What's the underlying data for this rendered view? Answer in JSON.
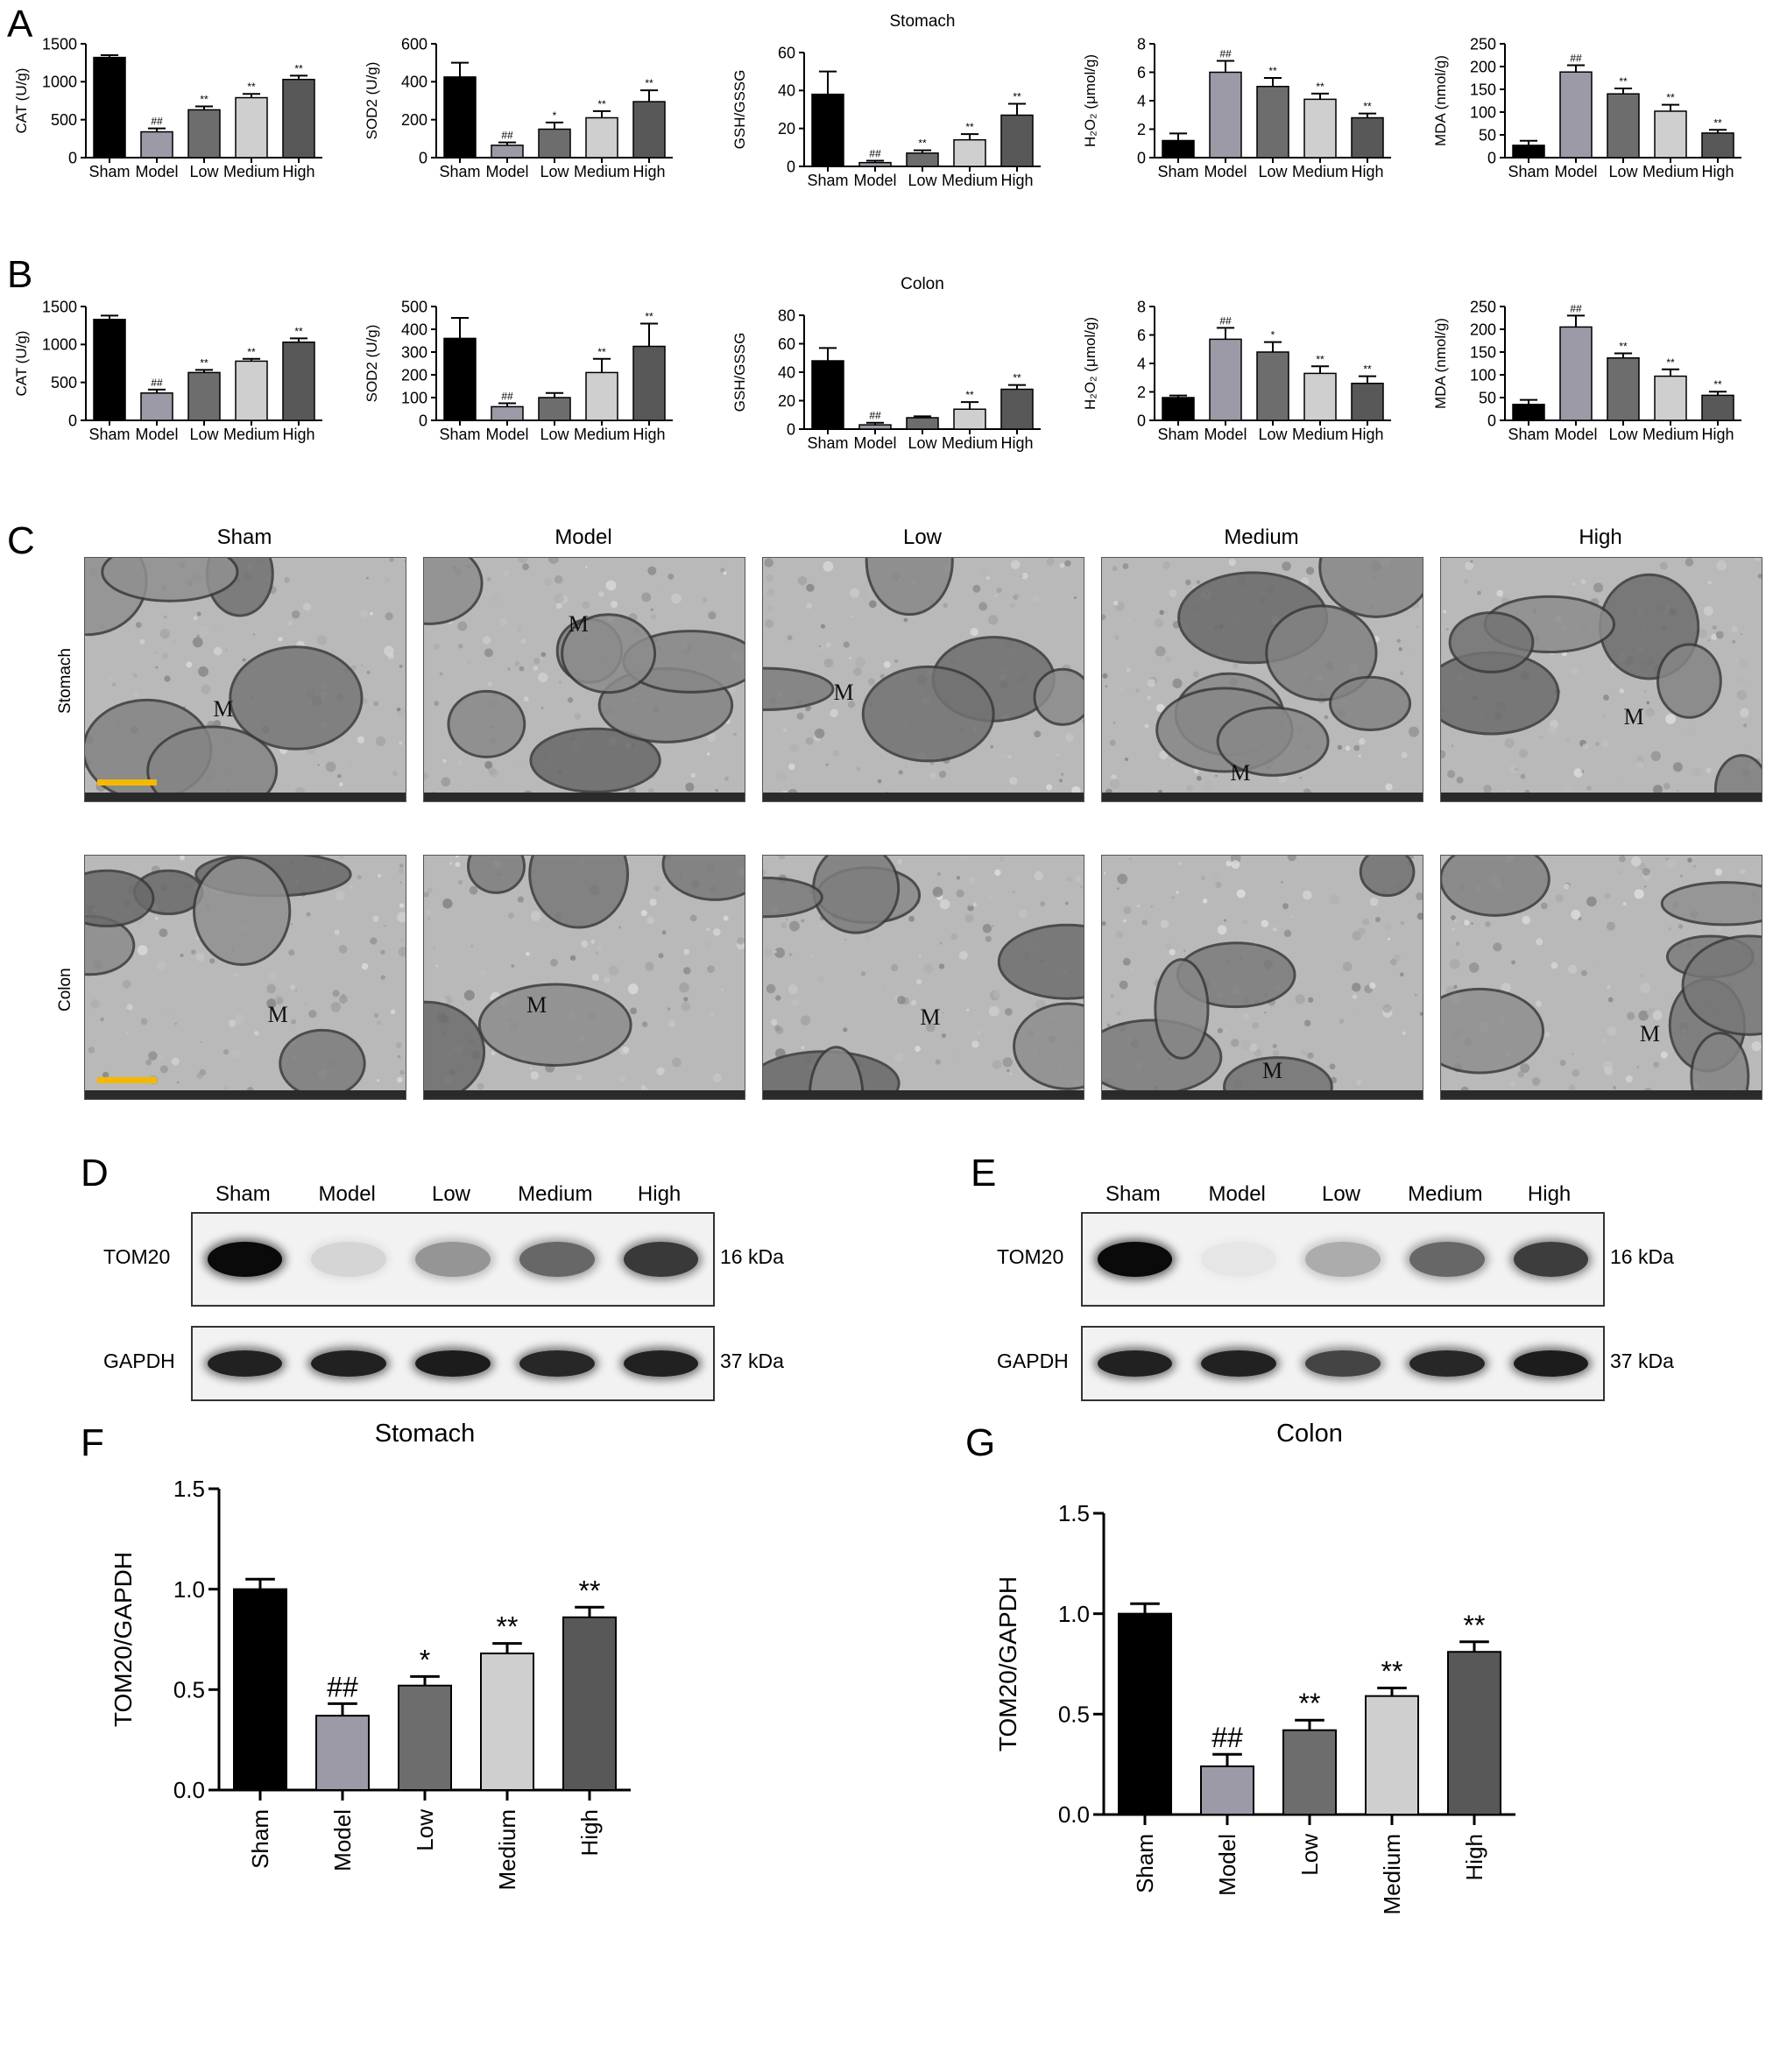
{
  "panels": {
    "A": "A",
    "B": "B",
    "C": "C",
    "D": "D",
    "E": "E",
    "F": "F",
    "G": "G"
  },
  "groups": [
    "Sham",
    "Model",
    "Low",
    "Medium",
    "High"
  ],
  "bar_colors": [
    "#000000",
    "#9b9aa6",
    "#6d6d6d",
    "#cfcfcf",
    "#585858"
  ],
  "chart_data": [
    {
      "id": "A1",
      "type": "bar",
      "panel": "A",
      "categories": [
        "Sham",
        "Model",
        "Low",
        "Medium",
        "High"
      ],
      "values": [
        1320,
        340,
        630,
        790,
        1030
      ],
      "errors": [
        30,
        45,
        45,
        50,
        50
      ],
      "sig": [
        "",
        "##",
        "**",
        "**",
        "**"
      ],
      "title": "",
      "ylabel": "CAT (U/g)",
      "ylim": [
        0,
        1500
      ],
      "yticks": [
        0,
        500,
        1000,
        1500
      ]
    },
    {
      "id": "A2",
      "type": "bar",
      "panel": "A",
      "categories": [
        "Sham",
        "Model",
        "Low",
        "Medium",
        "High"
      ],
      "values": [
        425,
        65,
        150,
        210,
        295
      ],
      "errors": [
        75,
        15,
        35,
        35,
        60
      ],
      "sig": [
        "",
        "##",
        "*",
        "**",
        "**"
      ],
      "title": "",
      "ylabel": "SOD2 (U/g)",
      "ylim": [
        0,
        600
      ],
      "yticks": [
        0,
        200,
        400,
        600
      ]
    },
    {
      "id": "A3",
      "type": "bar",
      "panel": "A",
      "categories": [
        "Sham",
        "Model",
        "Low",
        "Medium",
        "High"
      ],
      "values": [
        38,
        2,
        7,
        14,
        27
      ],
      "errors": [
        12,
        1,
        1.5,
        3,
        6
      ],
      "sig": [
        "",
        "##",
        "**",
        "**",
        "**"
      ],
      "title": "Stomach",
      "ylabel": "GSH/GSSG",
      "ylim": [
        0,
        60
      ],
      "yticks": [
        0,
        20,
        40,
        60
      ]
    },
    {
      "id": "A4",
      "type": "bar",
      "panel": "A",
      "categories": [
        "Sham",
        "Model",
        "Low",
        "Medium",
        "High"
      ],
      "values": [
        1.2,
        6.0,
        5.0,
        4.1,
        2.8
      ],
      "errors": [
        0.5,
        0.8,
        0.6,
        0.4,
        0.3
      ],
      "sig": [
        "",
        "##",
        "**",
        "**",
        "**"
      ],
      "title": "",
      "ylabel": "H₂O₂ (μmol/g)",
      "ylim": [
        0,
        8
      ],
      "yticks": [
        0,
        2,
        4,
        6,
        8
      ]
    },
    {
      "id": "A5",
      "type": "bar",
      "panel": "A",
      "categories": [
        "Sham",
        "Model",
        "Low",
        "Medium",
        "High"
      ],
      "values": [
        27,
        188,
        140,
        102,
        54
      ],
      "errors": [
        10,
        15,
        12,
        14,
        7
      ],
      "sig": [
        "",
        "##",
        "**",
        "**",
        "**"
      ],
      "title": "",
      "ylabel": "MDA (nmol/g)",
      "ylim": [
        0,
        250
      ],
      "yticks": [
        0,
        50,
        100,
        150,
        200,
        250
      ]
    },
    {
      "id": "B1",
      "type": "bar",
      "panel": "B",
      "categories": [
        "Sham",
        "Model",
        "Low",
        "Medium",
        "High"
      ],
      "values": [
        1330,
        360,
        630,
        780,
        1030
      ],
      "errors": [
        50,
        45,
        35,
        30,
        50
      ],
      "sig": [
        "",
        "##",
        "**",
        "**",
        "**"
      ],
      "title": "",
      "ylabel": "CAT (U/g)",
      "ylim": [
        0,
        1500
      ],
      "yticks": [
        0,
        500,
        1000,
        1500
      ]
    },
    {
      "id": "B2",
      "type": "bar",
      "panel": "B",
      "categories": [
        "Sham",
        "Model",
        "Low",
        "Medium",
        "High"
      ],
      "values": [
        360,
        60,
        100,
        210,
        325
      ],
      "errors": [
        90,
        15,
        20,
        60,
        100
      ],
      "sig": [
        "",
        "##",
        "",
        "**",
        "**"
      ],
      "title": "",
      "ylabel": "SOD2 (U/g)",
      "ylim": [
        0,
        500
      ],
      "yticks": [
        0,
        100,
        200,
        300,
        400,
        500
      ]
    },
    {
      "id": "B3",
      "type": "bar",
      "panel": "B",
      "categories": [
        "Sham",
        "Model",
        "Low",
        "Medium",
        "High"
      ],
      "values": [
        48,
        3,
        8,
        14,
        28
      ],
      "errors": [
        9,
        1.5,
        1,
        5,
        3
      ],
      "sig": [
        "",
        "##",
        "",
        "**",
        "**"
      ],
      "title": "Colon",
      "ylabel": "GSH/GSSG",
      "ylim": [
        0,
        80
      ],
      "yticks": [
        0,
        20,
        40,
        60,
        80
      ]
    },
    {
      "id": "B4",
      "type": "bar",
      "panel": "B",
      "categories": [
        "Sham",
        "Model",
        "Low",
        "Medium",
        "High"
      ],
      "values": [
        1.6,
        5.7,
        4.8,
        3.3,
        2.6
      ],
      "errors": [
        0.15,
        0.8,
        0.7,
        0.5,
        0.5
      ],
      "sig": [
        "",
        "##",
        "*",
        "**",
        "**"
      ],
      "title": "",
      "ylabel": "H₂O₂ (μmol/g)",
      "ylim": [
        0,
        8
      ],
      "yticks": [
        0,
        2,
        4,
        6,
        8
      ]
    },
    {
      "id": "B5",
      "type": "bar",
      "panel": "B",
      "categories": [
        "Sham",
        "Model",
        "Low",
        "Medium",
        "High"
      ],
      "values": [
        35,
        205,
        137,
        97,
        55
      ],
      "errors": [
        10,
        25,
        10,
        15,
        8
      ],
      "sig": [
        "",
        "##",
        "**",
        "**",
        "**"
      ],
      "title": "",
      "ylabel": "MDA (nmol/g)",
      "ylim": [
        0,
        250
      ],
      "yticks": [
        0,
        50,
        100,
        150,
        200,
        250
      ]
    },
    {
      "id": "F",
      "type": "bar",
      "panel": "F",
      "categories": [
        "Sham",
        "Model",
        "Low",
        "Medium",
        "High"
      ],
      "values": [
        1.0,
        0.37,
        0.52,
        0.68,
        0.86
      ],
      "errors": [
        0.05,
        0.06,
        0.045,
        0.05,
        0.05
      ],
      "sig": [
        "",
        "##",
        "*",
        "**",
        "**"
      ],
      "title": "Stomach",
      "ylabel": "TOM20/GAPDH",
      "ylim": [
        0,
        1.5
      ],
      "yticks": [
        0.0,
        0.5,
        1.0,
        1.5
      ]
    },
    {
      "id": "G",
      "type": "bar",
      "panel": "G",
      "categories": [
        "Sham",
        "Model",
        "Low",
        "Medium",
        "High"
      ],
      "values": [
        1.0,
        0.24,
        0.42,
        0.59,
        0.81
      ],
      "errors": [
        0.05,
        0.06,
        0.05,
        0.04,
        0.05
      ],
      "sig": [
        "",
        "##",
        "**",
        "**",
        "**"
      ],
      "title": "Colon",
      "ylabel": "TOM20/GAPDH",
      "ylim": [
        0,
        1.5
      ],
      "yticks": [
        0.0,
        0.5,
        1.0,
        1.5
      ]
    }
  ],
  "em": {
    "columns": [
      "Sham",
      "Model",
      "Low",
      "Medium",
      "High"
    ],
    "rows": [
      "Stomach",
      "Colon"
    ],
    "mito_label": "M"
  },
  "western": {
    "D": {
      "lanes": [
        "Sham",
        "Model",
        "Low",
        "Medium",
        "High"
      ],
      "proteins": [
        {
          "name": "TOM20",
          "kda": "16 kDa",
          "intensity": [
            1.0,
            0.12,
            0.4,
            0.6,
            0.8
          ]
        },
        {
          "name": "GAPDH",
          "kda": "37 kDa",
          "intensity": [
            0.9,
            0.9,
            0.92,
            0.88,
            0.9
          ]
        }
      ]
    },
    "E": {
      "lanes": [
        "Sham",
        "Model",
        "Low",
        "Medium",
        "High"
      ],
      "proteins": [
        {
          "name": "TOM20",
          "kda": "16 kDa",
          "intensity": [
            1.0,
            0.05,
            0.3,
            0.6,
            0.78
          ]
        },
        {
          "name": "GAPDH",
          "kda": "37 kDa",
          "intensity": [
            0.9,
            0.9,
            0.75,
            0.88,
            0.92
          ]
        }
      ]
    }
  }
}
